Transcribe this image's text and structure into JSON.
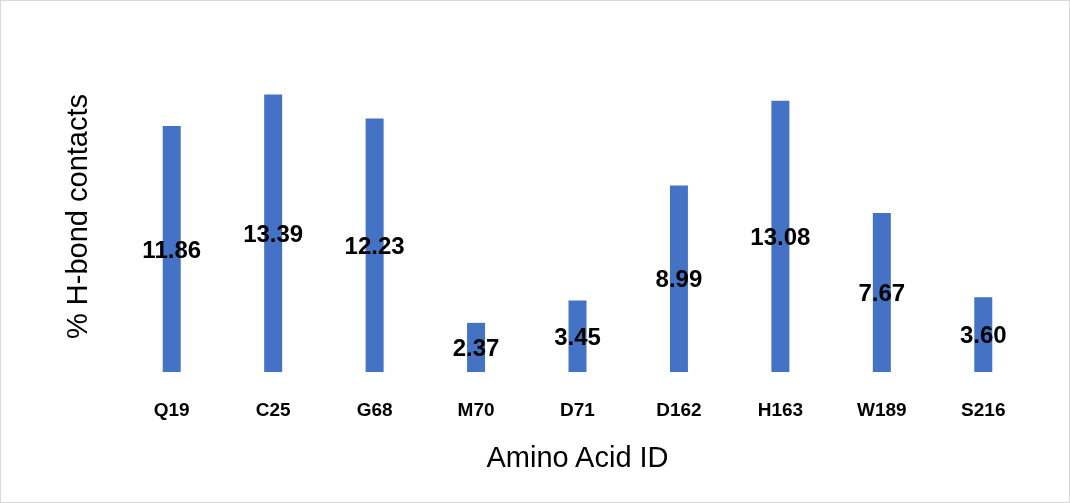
{
  "chart_data": {
    "type": "bar",
    "xlabel": "Amino Acid ID",
    "ylabel": "% H-bond contacts",
    "categories": [
      "Q19",
      "C25",
      "G68",
      "M70",
      "D71",
      "D162",
      "H163",
      "W189",
      "S216"
    ],
    "values": [
      11.86,
      13.39,
      12.23,
      2.37,
      3.45,
      8.99,
      13.08,
      7.67,
      3.6
    ],
    "value_labels": [
      "11.86",
      "13.39",
      "12.23",
      "2.37",
      "3.45",
      "8.99",
      "13.08",
      "7.67",
      "3.60"
    ],
    "color": "#4472c4",
    "grid": false,
    "tick_labels": "x"
  }
}
